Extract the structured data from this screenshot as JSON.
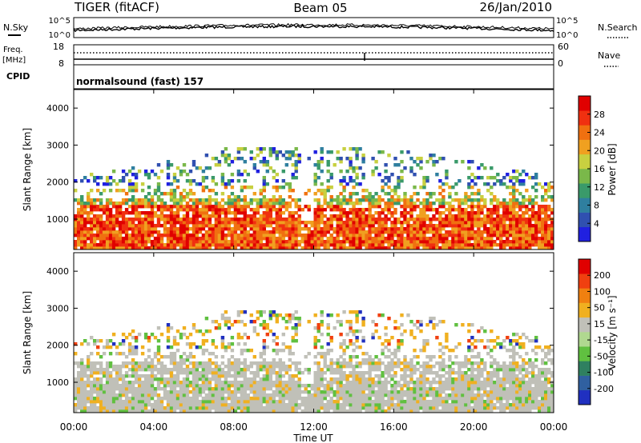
{
  "header": {
    "station": "TIGER (fitACF)",
    "beam": "Beam 05",
    "date": "26/Jan/2010"
  },
  "summary_panels": {
    "nsky_label": "N.Sky",
    "nsearch_label": "N.Search",
    "noise_ticks_left": [
      "10^5",
      "10^0"
    ],
    "noise_ticks_right": [
      "10^5",
      "10^0"
    ],
    "freq_label": "Freq.",
    "freq_unit": "[MHz]",
    "freq_ticks": [
      "18",
      "8"
    ],
    "nave_label": "Nave",
    "nave_ticks": [
      "60",
      "0"
    ],
    "cpid_label": "CPID",
    "cpid_text": "normalsound (fast)  157"
  },
  "chart_data": [
    {
      "type": "heatmap",
      "name": "power-panel",
      "ylabel": "Slant Range [km]",
      "ylim": [
        180,
        4500
      ],
      "yticks": [
        1000,
        2000,
        3000,
        4000
      ],
      "x_ticks": [
        "00:00",
        "04:00",
        "08:00",
        "12:00",
        "16:00",
        "20:00",
        "00:00"
      ],
      "colorbar": {
        "label": "Power [dB]",
        "tick_labels": [
          "28",
          "24",
          "20",
          "16",
          "12",
          "8",
          "4"
        ],
        "colors": [
          "#2020e0",
          "#3050b0",
          "#2f7f9f",
          "#3a9a6a",
          "#7ab84a",
          "#c8d040",
          "#f0a020",
          "#f07010",
          "#f03010",
          "#e00000"
        ]
      }
    },
    {
      "type": "heatmap",
      "name": "velocity-panel",
      "ylabel": "Slant Range [km]",
      "ylim": [
        180,
        4500
      ],
      "yticks": [
        1000,
        2000,
        3000,
        4000
      ],
      "x_ticks": [
        "00:00",
        "04:00",
        "08:00",
        "12:00",
        "16:00",
        "20:00",
        "00:00"
      ],
      "xlabel": "Time UT",
      "colorbar": {
        "label": "Velocity [m s⁻¹]",
        "tick_labels": [
          "200",
          "100",
          "50",
          "15",
          "-15",
          "-50",
          "-100",
          "-200"
        ],
        "colors": [
          "#2030c0",
          "#3060a0",
          "#2f8060",
          "#60c040",
          "#b0d890",
          "#c0c0b8",
          "#f0b020",
          "#f08010",
          "#f04010",
          "#e00000"
        ]
      }
    }
  ]
}
